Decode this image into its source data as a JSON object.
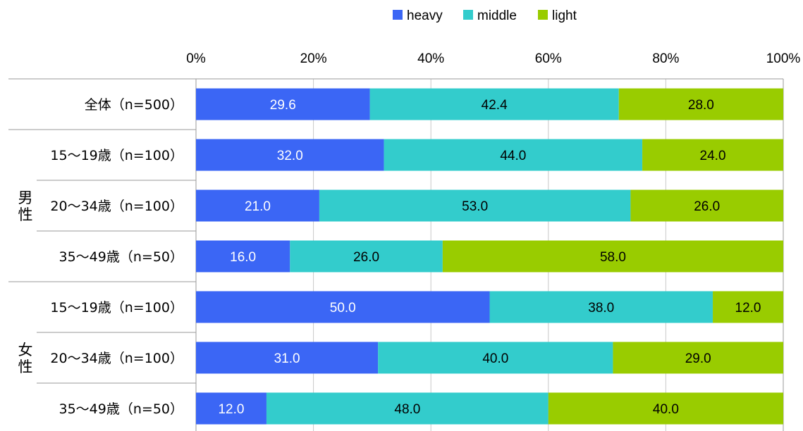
{
  "chart_data": {
    "type": "bar",
    "orientation": "horizontal",
    "stacked": "percent",
    "legend": {
      "position": "top",
      "items": [
        "heavy",
        "middle",
        "light"
      ]
    },
    "colors": {
      "heavy": "#3b66f5",
      "middle": "#33cccc",
      "light": "#99cc00"
    },
    "xaxis": {
      "position": "top",
      "ticks": [
        "0%",
        "20%",
        "40%",
        "60%",
        "80%",
        "100%"
      ],
      "range": [
        0,
        100
      ]
    },
    "groups": [
      {
        "label": "",
        "rows": [
          0
        ]
      },
      {
        "label": "男性",
        "rows": [
          1,
          2,
          3
        ]
      },
      {
        "label": "女性",
        "rows": [
          4,
          5,
          6
        ]
      }
    ],
    "categories": [
      "全体（n=500）",
      "15～19歳（n=100）",
      "20～34歳（n=100）",
      "35～49歳（n=50）",
      "15～19歳（n=100）",
      "20～34歳（n=100）",
      "35～49歳（n=50）"
    ],
    "series": [
      {
        "name": "heavy",
        "values": [
          29.6,
          32.0,
          21.0,
          16.0,
          50.0,
          31.0,
          12.0
        ],
        "labels": [
          "29.6",
          "32.0",
          "21.0",
          "16.0",
          "50.0",
          "31.0",
          "12.0"
        ]
      },
      {
        "name": "middle",
        "values": [
          42.4,
          44.0,
          53.0,
          26.0,
          38.0,
          40.0,
          48.0
        ],
        "labels": [
          "42.4",
          "44.0",
          "53.0",
          "26.0",
          "38.0",
          "40.0",
          "48.0"
        ]
      },
      {
        "name": "light",
        "values": [
          28.0,
          24.0,
          26.0,
          58.0,
          12.0,
          29.0,
          40.0
        ],
        "labels": [
          "28.0",
          "24.0",
          "26.0",
          "58.0",
          "12.0",
          "29.0",
          "40.0"
        ]
      }
    ]
  }
}
